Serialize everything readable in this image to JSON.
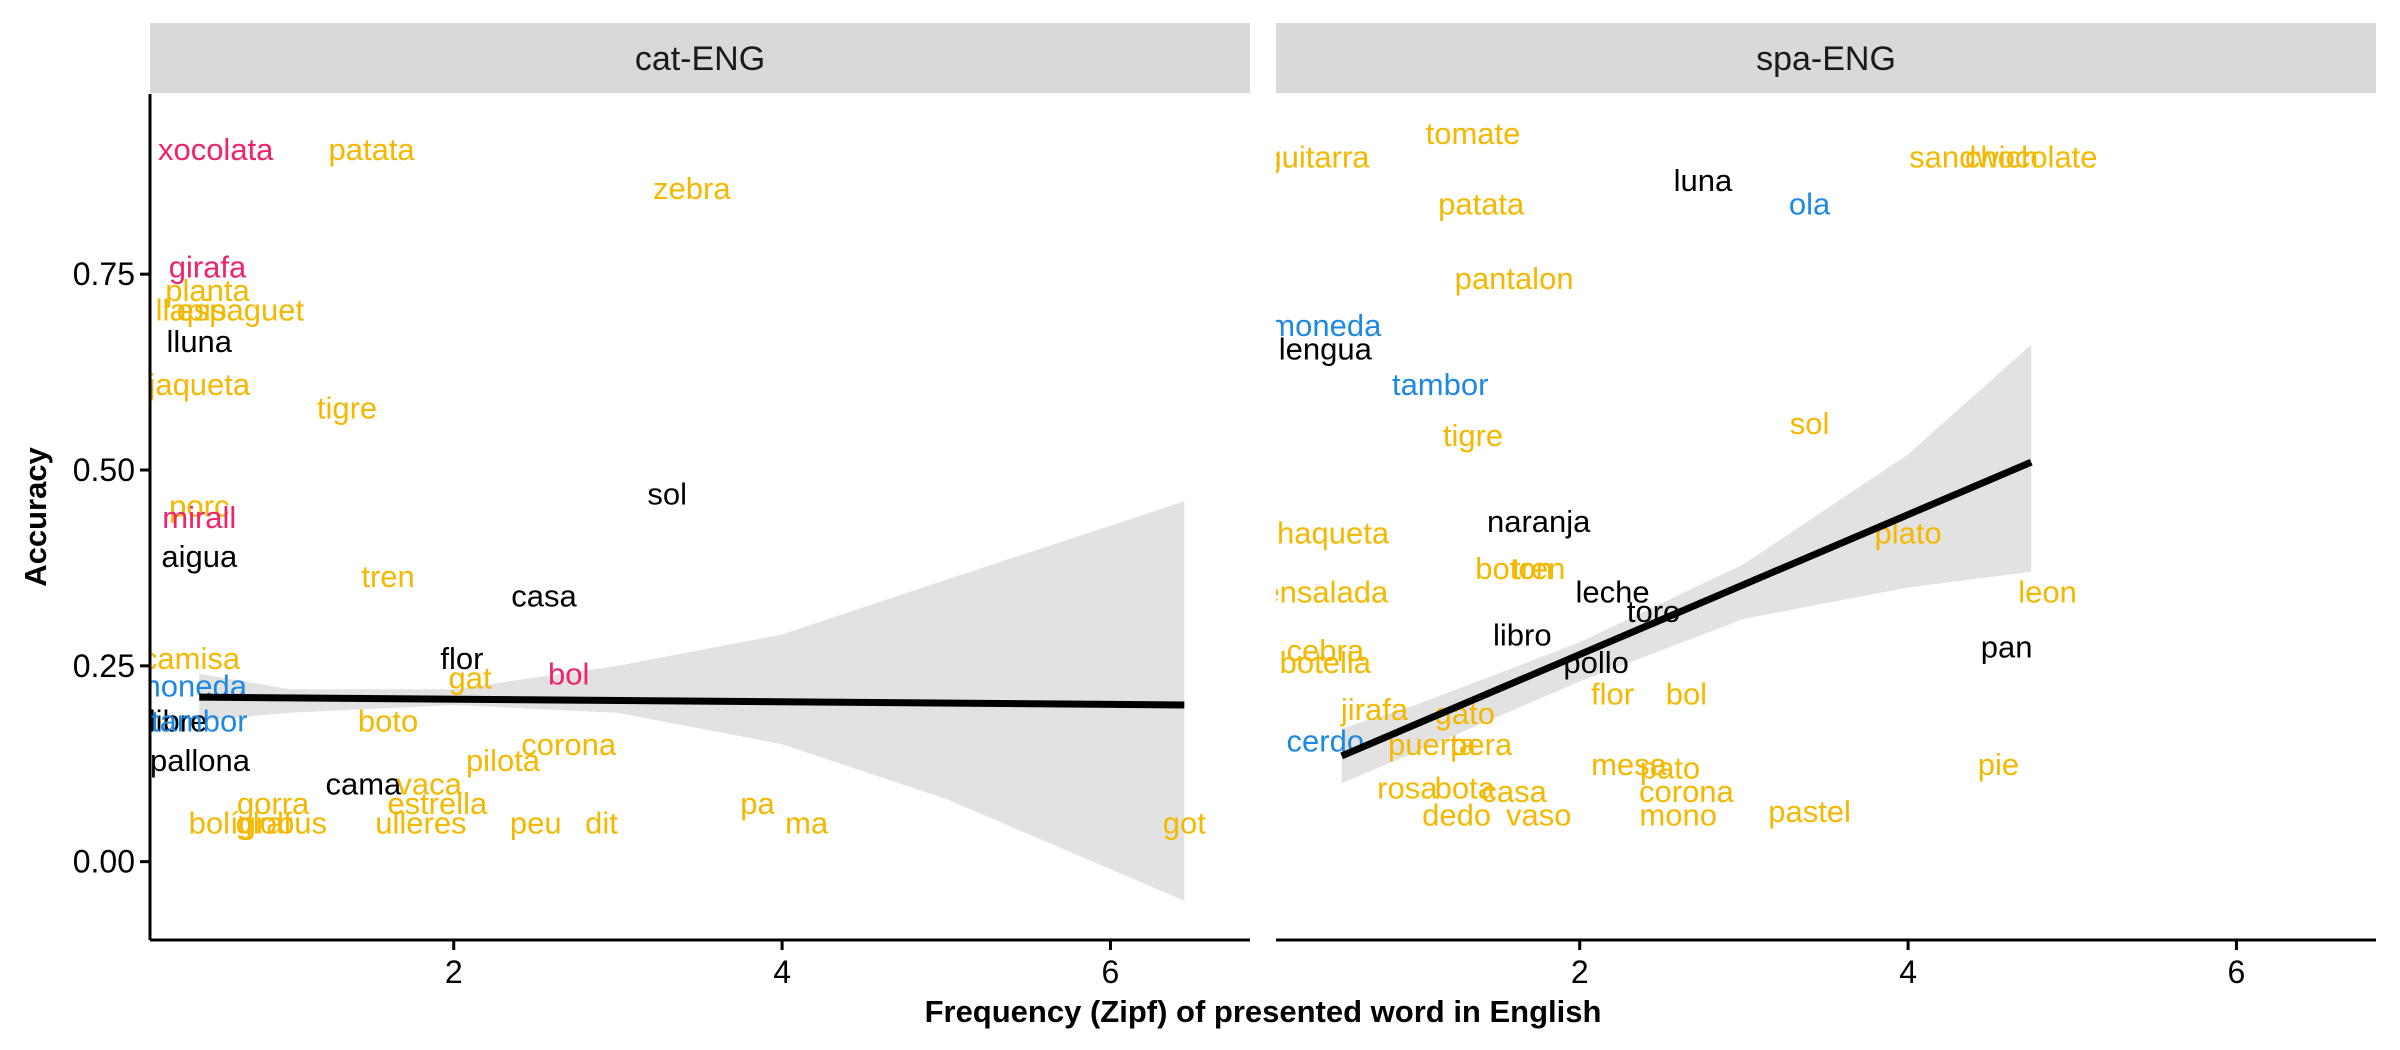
{
  "chart_data": {
    "type": "scatter",
    "xlabel": "Frequency (Zipf) of presented word in English",
    "ylabel": "Accuracy",
    "xlim": [
      0.15,
      6.85
    ],
    "ylim": [
      -0.1,
      0.98
    ],
    "x_ticks": [
      2,
      4,
      6
    ],
    "y_ticks": [
      0.0,
      0.25,
      0.5,
      0.75
    ],
    "x_tick_labels": [
      "2",
      "4",
      "6"
    ],
    "y_tick_labels": [
      "0.00",
      "0.25",
      "0.50",
      "0.75"
    ],
    "grid": false,
    "legend": "none",
    "colors": {
      "yellow": "#F5B800",
      "black": "#000000",
      "pink": "#F0226E",
      "blue": "#1E88E5",
      "ribbon": "#BEBEBE",
      "strip": "#D9D9D9",
      "fit_line": "#000000"
    },
    "panels": [
      {
        "strip": "cat-ENG",
        "fit": {
          "x": [
            0.45,
            6.45
          ],
          "y": [
            0.21,
            0.2
          ]
        },
        "ribbon": {
          "x": [
            0.45,
            1.0,
            2.0,
            3.0,
            4.0,
            5.0,
            6.45
          ],
          "lower": [
            0.18,
            0.19,
            0.2,
            0.19,
            0.15,
            0.08,
            -0.05
          ],
          "upper": [
            0.24,
            0.22,
            0.22,
            0.25,
            0.29,
            0.36,
            0.46
          ]
        },
        "points": [
          {
            "label": "xocolata",
            "x": 0.55,
            "y": 0.91,
            "color": "pink"
          },
          {
            "label": "patata",
            "x": 1.5,
            "y": 0.91,
            "color": "yellow"
          },
          {
            "label": "zebra",
            "x": 3.45,
            "y": 0.86,
            "color": "yellow"
          },
          {
            "label": "girafa",
            "x": 0.5,
            "y": 0.76,
            "color": "pink"
          },
          {
            "label": "planta",
            "x": 0.5,
            "y": 0.73,
            "color": "yellow"
          },
          {
            "label": "espaguet",
            "x": 0.7,
            "y": 0.705,
            "color": "yellow"
          },
          {
            "label": "llapis",
            "x": 0.4,
            "y": 0.705,
            "color": "yellow"
          },
          {
            "label": "lluna",
            "x": 0.45,
            "y": 0.665,
            "color": "black"
          },
          {
            "label": "jaqueta",
            "x": 0.45,
            "y": 0.61,
            "color": "yellow"
          },
          {
            "label": "tigre",
            "x": 1.35,
            "y": 0.58,
            "color": "yellow"
          },
          {
            "label": "sol",
            "x": 3.3,
            "y": 0.47,
            "color": "black"
          },
          {
            "label": "porc",
            "x": 0.45,
            "y": 0.455,
            "color": "yellow"
          },
          {
            "label": "mirall",
            "x": 0.45,
            "y": 0.44,
            "color": "pink"
          },
          {
            "label": "aigua",
            "x": 0.45,
            "y": 0.39,
            "color": "black"
          },
          {
            "label": "tren",
            "x": 1.6,
            "y": 0.365,
            "color": "yellow"
          },
          {
            "label": "casa",
            "x": 2.55,
            "y": 0.34,
            "color": "black"
          },
          {
            "label": "camisa",
            "x": 0.4,
            "y": 0.26,
            "color": "yellow"
          },
          {
            "label": "flor",
            "x": 2.05,
            "y": 0.26,
            "color": "black"
          },
          {
            "label": "bol",
            "x": 2.7,
            "y": 0.24,
            "color": "pink"
          },
          {
            "label": "gat",
            "x": 2.1,
            "y": 0.235,
            "color": "yellow"
          },
          {
            "label": "moneda",
            "x": 0.4,
            "y": 0.225,
            "color": "blue"
          },
          {
            "label": "llibre",
            "x": 0.3,
            "y": 0.18,
            "color": "black"
          },
          {
            "label": "tambor",
            "x": 0.45,
            "y": 0.18,
            "color": "blue"
          },
          {
            "label": "boto",
            "x": 1.6,
            "y": 0.18,
            "color": "yellow"
          },
          {
            "label": "corona",
            "x": 2.7,
            "y": 0.15,
            "color": "yellow"
          },
          {
            "label": "pilota",
            "x": 2.3,
            "y": 0.13,
            "color": "yellow"
          },
          {
            "label": "papallona",
            "x": 0.35,
            "y": 0.13,
            "color": "black"
          },
          {
            "label": "cama",
            "x": 1.45,
            "y": 0.1,
            "color": "black"
          },
          {
            "label": "vaca",
            "x": 1.85,
            "y": 0.1,
            "color": "yellow"
          },
          {
            "label": "gorra",
            "x": 0.9,
            "y": 0.075,
            "color": "yellow"
          },
          {
            "label": "estrella",
            "x": 1.9,
            "y": 0.075,
            "color": "yellow"
          },
          {
            "label": "pa",
            "x": 3.85,
            "y": 0.075,
            "color": "yellow"
          },
          {
            "label": "bolígraf",
            "x": 0.7,
            "y": 0.05,
            "color": "yellow"
          },
          {
            "label": "globus",
            "x": 0.95,
            "y": 0.05,
            "color": "yellow"
          },
          {
            "label": "ulleres",
            "x": 1.8,
            "y": 0.05,
            "color": "yellow"
          },
          {
            "label": "peu",
            "x": 2.5,
            "y": 0.05,
            "color": "yellow"
          },
          {
            "label": "dit",
            "x": 2.9,
            "y": 0.05,
            "color": "yellow"
          },
          {
            "label": "ma",
            "x": 4.15,
            "y": 0.05,
            "color": "yellow"
          },
          {
            "label": "got",
            "x": 6.45,
            "y": 0.05,
            "color": "yellow"
          }
        ]
      },
      {
        "strip": "spa-ENG",
        "fit": {
          "x": [
            0.55,
            4.75
          ],
          "y": [
            0.135,
            0.51
          ]
        },
        "ribbon": {
          "x": [
            0.55,
            1.0,
            2.0,
            3.0,
            4.0,
            4.75
          ],
          "lower": [
            0.1,
            0.14,
            0.23,
            0.31,
            0.35,
            0.37
          ],
          "upper": [
            0.17,
            0.2,
            0.28,
            0.38,
            0.52,
            0.66
          ]
        },
        "points": [
          {
            "label": "guitarra",
            "x": 0.4,
            "y": 0.9,
            "color": "yellow"
          },
          {
            "label": "tomate",
            "x": 1.35,
            "y": 0.93,
            "color": "yellow"
          },
          {
            "label": "luna",
            "x": 2.75,
            "y": 0.87,
            "color": "black"
          },
          {
            "label": "sandwich",
            "x": 4.4,
            "y": 0.9,
            "color": "yellow"
          },
          {
            "label": "chocolate",
            "x": 4.75,
            "y": 0.9,
            "color": "yellow"
          },
          {
            "label": "patata",
            "x": 1.4,
            "y": 0.84,
            "color": "yellow"
          },
          {
            "label": "ola",
            "x": 3.4,
            "y": 0.84,
            "color": "blue"
          },
          {
            "label": "pantalon",
            "x": 1.6,
            "y": 0.745,
            "color": "yellow"
          },
          {
            "label": "moneda",
            "x": 0.45,
            "y": 0.685,
            "color": "blue"
          },
          {
            "label": "lengua",
            "x": 0.45,
            "y": 0.655,
            "color": "black"
          },
          {
            "label": "tambor",
            "x": 1.15,
            "y": 0.61,
            "color": "blue"
          },
          {
            "label": "sol",
            "x": 3.4,
            "y": 0.56,
            "color": "yellow"
          },
          {
            "label": "tigre",
            "x": 1.35,
            "y": 0.545,
            "color": "yellow"
          },
          {
            "label": "naranja",
            "x": 1.75,
            "y": 0.435,
            "color": "black"
          },
          {
            "label": "chaqueta",
            "x": 0.45,
            "y": 0.42,
            "color": "yellow"
          },
          {
            "label": "plato",
            "x": 4.0,
            "y": 0.42,
            "color": "yellow"
          },
          {
            "label": "boton",
            "x": 1.6,
            "y": 0.375,
            "color": "yellow"
          },
          {
            "label": "tren",
            "x": 1.75,
            "y": 0.375,
            "color": "yellow"
          },
          {
            "label": "leche",
            "x": 2.2,
            "y": 0.345,
            "color": "black"
          },
          {
            "label": "toro",
            "x": 2.45,
            "y": 0.32,
            "color": "black"
          },
          {
            "label": "ensalada",
            "x": 0.45,
            "y": 0.345,
            "color": "yellow"
          },
          {
            "label": "leon",
            "x": 4.85,
            "y": 0.345,
            "color": "yellow"
          },
          {
            "label": "libro",
            "x": 1.65,
            "y": 0.29,
            "color": "black"
          },
          {
            "label": "cebra",
            "x": 0.45,
            "y": 0.27,
            "color": "yellow"
          },
          {
            "label": "pan",
            "x": 4.6,
            "y": 0.275,
            "color": "black"
          },
          {
            "label": "botella",
            "x": 0.45,
            "y": 0.255,
            "color": "yellow"
          },
          {
            "label": "pollo",
            "x": 2.1,
            "y": 0.255,
            "color": "black"
          },
          {
            "label": "flor",
            "x": 2.2,
            "y": 0.215,
            "color": "yellow"
          },
          {
            "label": "bol",
            "x": 2.65,
            "y": 0.215,
            "color": "yellow"
          },
          {
            "label": "jirafa",
            "x": 0.75,
            "y": 0.195,
            "color": "yellow"
          },
          {
            "label": "gato",
            "x": 1.3,
            "y": 0.19,
            "color": "yellow"
          },
          {
            "label": "cerdo",
            "x": 0.45,
            "y": 0.155,
            "color": "blue"
          },
          {
            "label": "puerta",
            "x": 1.1,
            "y": 0.15,
            "color": "yellow"
          },
          {
            "label": "pera",
            "x": 1.4,
            "y": 0.15,
            "color": "yellow"
          },
          {
            "label": "mesa",
            "x": 2.3,
            "y": 0.125,
            "color": "yellow"
          },
          {
            "label": "pie",
            "x": 4.55,
            "y": 0.125,
            "color": "yellow"
          },
          {
            "label": "pato",
            "x": 2.55,
            "y": 0.12,
            "color": "yellow"
          },
          {
            "label": "rosa",
            "x": 0.95,
            "y": 0.095,
            "color": "yellow"
          },
          {
            "label": "bota",
            "x": 1.3,
            "y": 0.095,
            "color": "yellow"
          },
          {
            "label": "casa",
            "x": 1.6,
            "y": 0.09,
            "color": "yellow"
          },
          {
            "label": "corona",
            "x": 2.65,
            "y": 0.09,
            "color": "yellow"
          },
          {
            "label": "pastel",
            "x": 3.4,
            "y": 0.065,
            "color": "yellow"
          },
          {
            "label": "dedo",
            "x": 1.25,
            "y": 0.06,
            "color": "yellow"
          },
          {
            "label": "vaso",
            "x": 1.75,
            "y": 0.06,
            "color": "yellow"
          },
          {
            "label": "mono",
            "x": 2.6,
            "y": 0.06,
            "color": "yellow"
          }
        ]
      }
    ]
  }
}
